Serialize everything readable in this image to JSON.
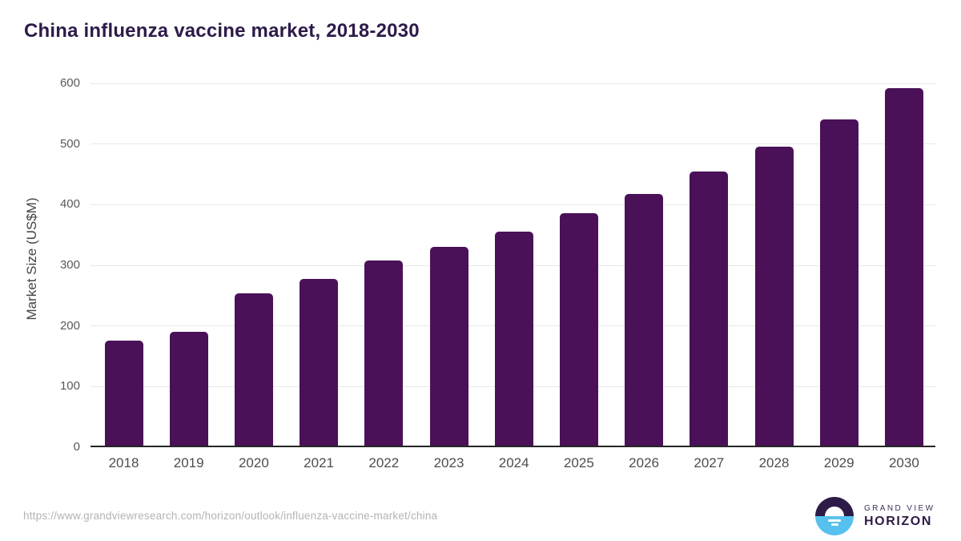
{
  "header": {
    "title": "China influenza vaccine market, 2018-2030"
  },
  "chart_data": {
    "type": "bar",
    "title": "China influenza vaccine market, 2018-2030",
    "categories": [
      "2018",
      "2019",
      "2020",
      "2021",
      "2022",
      "2023",
      "2024",
      "2025",
      "2026",
      "2027",
      "2028",
      "2029",
      "2030"
    ],
    "values": [
      176,
      190,
      254,
      278,
      308,
      330,
      356,
      386,
      418,
      454,
      496,
      541,
      592
    ],
    "xlabel": "",
    "ylabel": "Market Size (US$M)",
    "ylim": [
      0,
      600
    ],
    "yticks": [
      0,
      100,
      200,
      300,
      400,
      500,
      600
    ],
    "grid": "horizontal-only",
    "legend": "none",
    "bar_color": "#4a1158"
  },
  "footer": {
    "source_url": "https://www.grandviewresearch.com/horizon/outlook/influenza-vaccine-market/china",
    "logo": {
      "line1": "GRAND VIEW",
      "line2": "HORIZON"
    }
  },
  "colors": {
    "title": "#2d1b4a",
    "bar": "#4a1158",
    "axis_text": "#595959",
    "xaxis_text": "#4d4d4d",
    "gridline": "#e8e8e8",
    "baseline": "#262626",
    "url_text": "#b3b3b3",
    "logo_dark": "#2e1a47",
    "logo_blue": "#56c1ee"
  }
}
